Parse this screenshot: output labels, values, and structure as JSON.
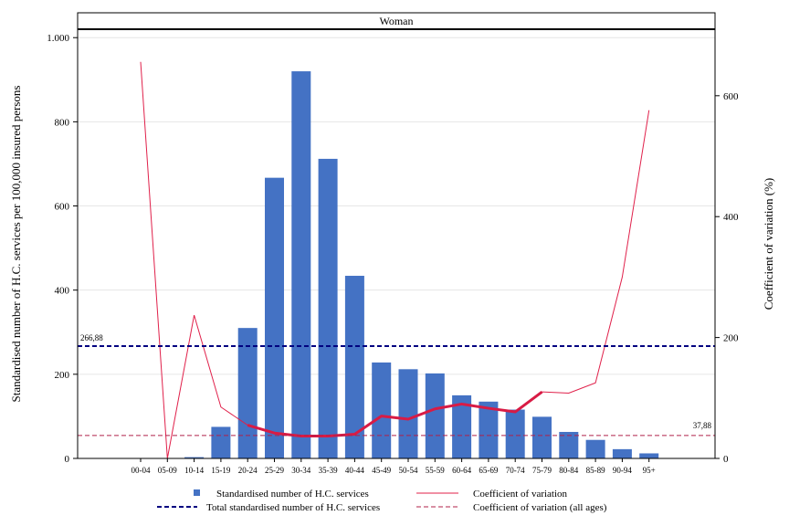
{
  "chart_data": {
    "type": "bar",
    "panel_title": "Woman",
    "ylabel": "Standardised number of H.C. services per 100,000 insured persons",
    "y2label": "Coefficient of variation (%)",
    "ylim": [
      0,
      1020
    ],
    "y2lim": [
      0,
      710
    ],
    "yticks": [
      {
        "v": 0,
        "label": "0"
      },
      {
        "v": 200,
        "label": "200"
      },
      {
        "v": 400,
        "label": "400"
      },
      {
        "v": 600,
        "label": "600"
      },
      {
        "v": 800,
        "label": "800"
      },
      {
        "v": 1000,
        "label": "1.000"
      }
    ],
    "y2ticks": [
      {
        "v": 0,
        "label": "0"
      },
      {
        "v": 200,
        "label": "200"
      },
      {
        "v": 400,
        "label": "400"
      },
      {
        "v": 600,
        "label": "600"
      }
    ],
    "categories": [
      "00-04",
      "05-09",
      "10-14",
      "15-19",
      "20-24",
      "25-29",
      "30-34",
      "35-39",
      "40-44",
      "45-49",
      "50-54",
      "55-59",
      "60-64",
      "65-69",
      "70-74",
      "75-79",
      "80-84",
      "85-89",
      "90-94",
      "95+"
    ],
    "series": [
      {
        "name": "Standardised number of H.C. services",
        "axis": "left",
        "kind": "bar",
        "color": "#4472c4",
        "values": [
          0,
          0,
          3,
          75,
          310,
          667,
          920,
          712,
          434,
          228,
          212,
          202,
          150,
          135,
          116,
          99,
          63,
          44,
          22,
          12
        ]
      },
      {
        "name": "Coefficient of variation",
        "axis": "right",
        "kind": "line",
        "color": "#e0204a",
        "values": [
          656,
          0,
          237,
          85,
          55,
          42,
          37,
          37,
          40,
          70,
          65,
          82,
          90,
          83,
          77,
          110,
          108,
          125,
          300,
          576
        ],
        "thick_range": [
          4,
          15
        ]
      }
    ],
    "reference_lines": [
      {
        "name": "Total standardised number of H.C. services",
        "axis": "left",
        "value": 266.88,
        "label": "266,88",
        "color": "#000080"
      },
      {
        "name": "Coefficient of variation (all ages)",
        "axis": "right",
        "value": 37.88,
        "label": "37,88",
        "color": "#b0204a"
      }
    ],
    "grid": true,
    "legend_position": "bottom"
  }
}
